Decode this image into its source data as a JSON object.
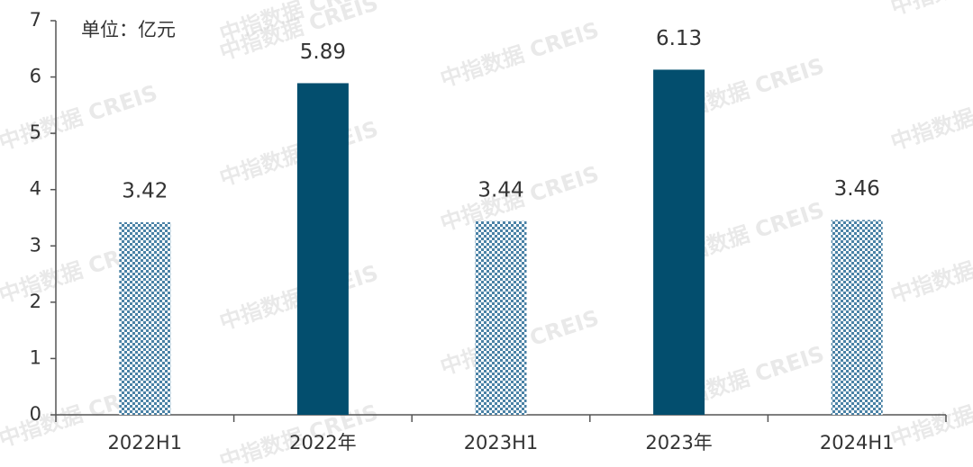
{
  "chart_data": {
    "type": "bar",
    "unit_label": "单位：亿元",
    "watermark": "中指数据 CREIS",
    "categories": [
      "2022H1",
      "2022年",
      "2023H1",
      "2023年",
      "2024H1"
    ],
    "values": [
      3.42,
      5.89,
      3.44,
      6.13,
      3.46
    ],
    "bar_styles": [
      "pattern",
      "solid",
      "pattern",
      "solid",
      "pattern"
    ],
    "color": "#034e6e",
    "pattern_color": "#4a82a6",
    "ylim": [
      0,
      7
    ],
    "yticks": [
      0,
      1,
      2,
      3,
      4,
      5,
      6,
      7
    ],
    "grid": false
  }
}
